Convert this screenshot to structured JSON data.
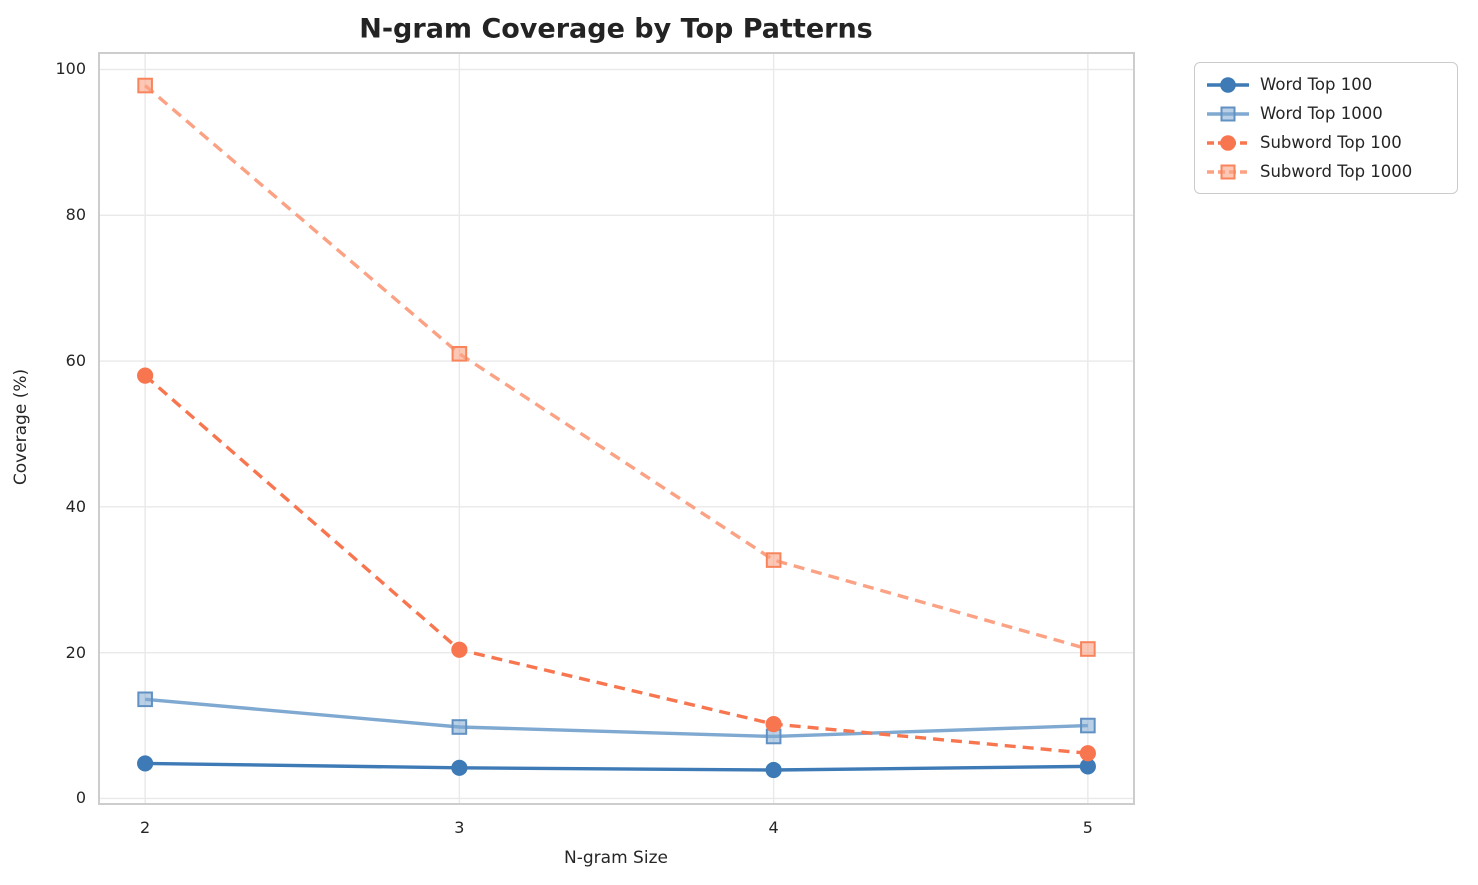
{
  "chart_data": {
    "type": "line",
    "title": "N-gram Coverage by Top Patterns",
    "xlabel": "N-gram Size",
    "ylabel": "Coverage (%)",
    "x": [
      2,
      3,
      4,
      5
    ],
    "xticks": [
      2,
      3,
      4,
      5
    ],
    "yticks": [
      0,
      20,
      40,
      60,
      80,
      100
    ],
    "xlim": [
      1.85,
      5.15
    ],
    "ylim": [
      -0.9,
      102.4
    ],
    "grid": true,
    "legend_position": "outside-upper-right",
    "series": [
      {
        "name": "Word Top 100",
        "values": [
          4.8,
          4.2,
          3.9,
          4.4
        ],
        "color": "#3D7AB6",
        "edge_color": "#3D7AB6",
        "marker_fill_opacity": 1,
        "linestyle": "solid",
        "marker": "circle"
      },
      {
        "name": "Word Top 1000",
        "values": [
          13.6,
          9.8,
          8.5,
          10.0
        ],
        "color": "#7FA9D1",
        "edge_color": "#6191C2",
        "marker_fill_opacity": 0.55,
        "linestyle": "solid",
        "marker": "square"
      },
      {
        "name": "Subword Top 100",
        "values": [
          58.0,
          20.4,
          10.2,
          6.2
        ],
        "color": "#F8764F",
        "edge_color": "#F8764F",
        "marker_fill_opacity": 1,
        "linestyle": "dashed",
        "marker": "circle"
      },
      {
        "name": "Subword Top 1000",
        "values": [
          97.8,
          61.0,
          32.7,
          20.5
        ],
        "color": "#FCA284",
        "edge_color": "#F8845C",
        "marker_fill_opacity": 0.6,
        "linestyle": "dashed",
        "marker": "square"
      }
    ]
  },
  "colors": {
    "background": "#FFFFFF",
    "grid": "#E9E9E9",
    "spine": "#CDCDCD",
    "text": "#262626"
  }
}
